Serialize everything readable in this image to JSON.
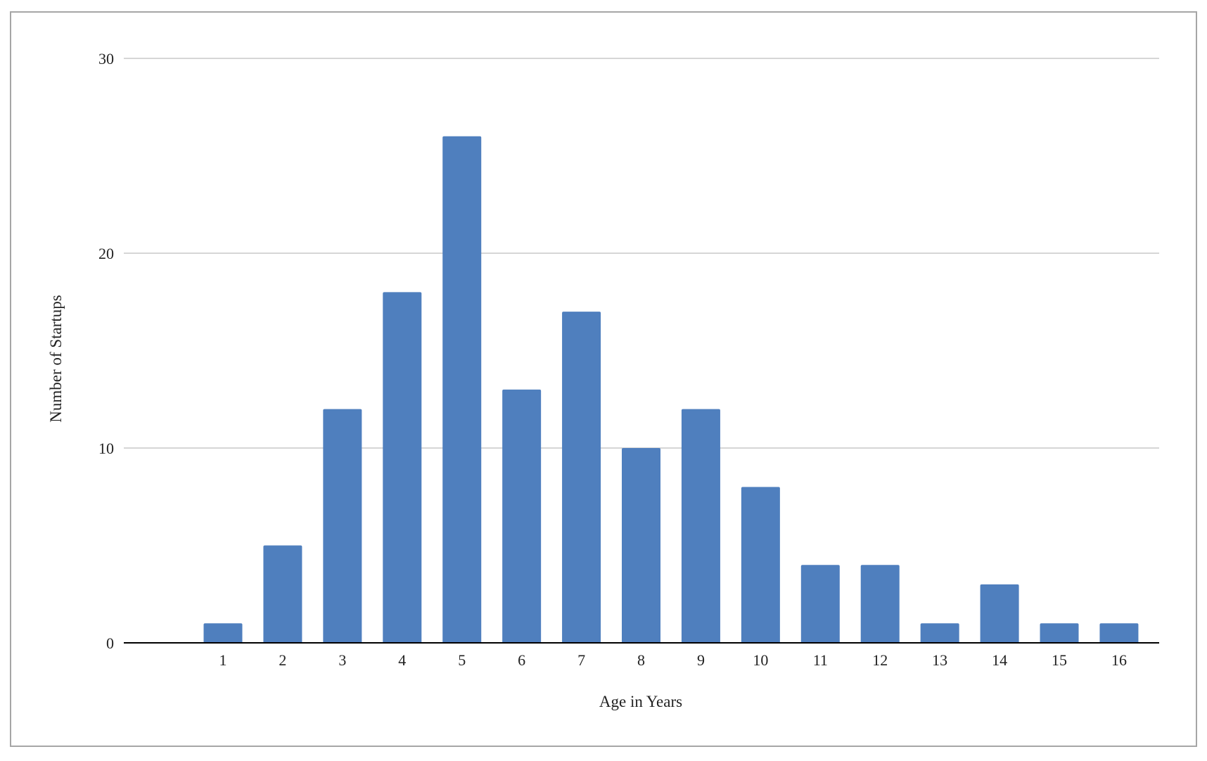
{
  "chart_data": {
    "type": "bar",
    "title": "",
    "xlabel": "Age in Years",
    "ylabel": "Number of Startups",
    "categories": [
      "1",
      "2",
      "3",
      "4",
      "5",
      "6",
      "7",
      "8",
      "9",
      "10",
      "11",
      "12",
      "13",
      "14",
      "15",
      "16"
    ],
    "values": [
      1,
      5,
      12,
      18,
      26,
      13,
      17,
      10,
      12,
      8,
      4,
      4,
      1,
      3,
      1,
      1
    ],
    "ylim": [
      0,
      30
    ],
    "yticks": [
      0,
      10,
      20,
      30
    ],
    "grid": true,
    "legend": "none",
    "bar_color": "#4f7fbe",
    "gridline_color": "#c8c8c8",
    "axis_color": "#000000"
  }
}
